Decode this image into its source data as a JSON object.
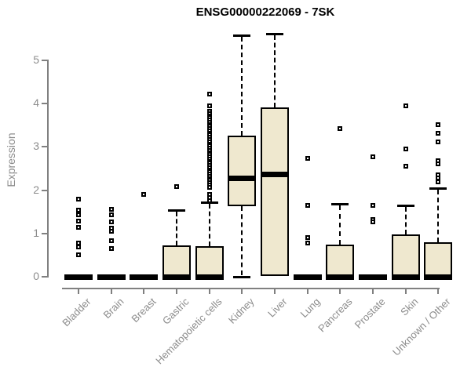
{
  "chart_data": {
    "type": "boxplot",
    "title": "ENSG00000222069 - 7SK",
    "ylabel": "Expression",
    "xlabel": "",
    "ylim": [
      0,
      5.7
    ],
    "yticks": [
      0,
      1,
      2,
      3,
      4,
      5
    ],
    "grid": false,
    "legend": false,
    "x_label_rotation_deg": 45,
    "colors": {
      "box_fill": "#EFE8CF",
      "box_border": "#000000",
      "axis": "#808080",
      "tick_label": "#8c8c8c",
      "title": "#000000"
    },
    "categories": [
      "Bladder",
      "Brain",
      "Breast",
      "Gastric",
      "Hematopoietic cells",
      "Kidney",
      "Liver",
      "Lung",
      "Pancreas",
      "Prostate",
      "Skin",
      "Unknown / Other"
    ],
    "boxes": [
      {
        "category": "Bladder",
        "q1": 0,
        "median": 0,
        "q3": 0.02,
        "whisker_low": 0,
        "whisker_high": 0.02,
        "outliers": [
          1.79,
          1.54,
          1.43,
          1.29,
          1.14,
          0.78,
          0.68,
          0.51
        ]
      },
      {
        "category": "Brain",
        "q1": 0,
        "median": 0,
        "q3": 0.02,
        "whisker_low": 0,
        "whisker_high": 0.02,
        "outliers": [
          1.56,
          1.44,
          1.27,
          1.12,
          1.05,
          0.83,
          0.65
        ]
      },
      {
        "category": "Breast",
        "q1": 0,
        "median": 0,
        "q3": 0.02,
        "whisker_low": 0,
        "whisker_high": 0.02,
        "outliers": [
          1.9
        ]
      },
      {
        "category": "Gastric",
        "q1": 0,
        "median": 0,
        "q3": 0.73,
        "whisker_low": 0,
        "whisker_high": 1.54,
        "outliers": [
          2.08
        ]
      },
      {
        "category": "Hematopoietic cells",
        "q1": 0,
        "median": 0,
        "q3": 0.7,
        "whisker_low": 0,
        "whisker_high": 1.72,
        "outliers": [
          4.22,
          3.95,
          3.82,
          3.77,
          3.72,
          3.67,
          3.62,
          3.57,
          3.52,
          3.47,
          3.42,
          3.37,
          3.32,
          3.27,
          3.22,
          3.17,
          3.12,
          3.07,
          3.02,
          2.97,
          2.92,
          2.87,
          2.82,
          2.77,
          2.72,
          2.67,
          2.62,
          2.57,
          2.52,
          2.47,
          2.42,
          2.37,
          2.32,
          2.27,
          2.22,
          2.17,
          2.12,
          2.07,
          1.9,
          1.83,
          1.76
        ]
      },
      {
        "category": "Kidney",
        "q1": 1.63,
        "median": 2.28,
        "q3": 3.26,
        "whisker_low": 0,
        "whisker_high": 5.58,
        "outliers": []
      },
      {
        "category": "Liver",
        "q1": 0.02,
        "median": 2.37,
        "q3": 3.91,
        "whisker_low": 0.02,
        "whisker_high": 5.62,
        "outliers": []
      },
      {
        "category": "Lung",
        "q1": 0,
        "median": 0,
        "q3": 0.02,
        "whisker_low": 0,
        "whisker_high": 0.02,
        "outliers": [
          2.74,
          1.65,
          0.91,
          0.78
        ]
      },
      {
        "category": "Pancreas",
        "q1": 0,
        "median": 0,
        "q3": 0.74,
        "whisker_low": 0,
        "whisker_high": 1.68,
        "outliers": [
          3.42
        ]
      },
      {
        "category": "Prostate",
        "q1": 0,
        "median": 0,
        "q3": 0.02,
        "whisker_low": 0,
        "whisker_high": 0.02,
        "outliers": [
          2.77,
          1.65,
          1.32,
          1.27
        ]
      },
      {
        "category": "Skin",
        "q1": 0,
        "median": 0,
        "q3": 0.98,
        "whisker_low": 0,
        "whisker_high": 1.65,
        "outliers": [
          3.95,
          2.95,
          2.55
        ]
      },
      {
        "category": "Unknown / Other",
        "q1": 0,
        "median": 0,
        "q3": 0.8,
        "whisker_low": 0,
        "whisker_high": 2.05,
        "outliers": [
          3.51,
          3.32,
          3.12,
          2.68,
          2.61,
          2.36,
          2.28,
          2.2
        ]
      }
    ]
  }
}
